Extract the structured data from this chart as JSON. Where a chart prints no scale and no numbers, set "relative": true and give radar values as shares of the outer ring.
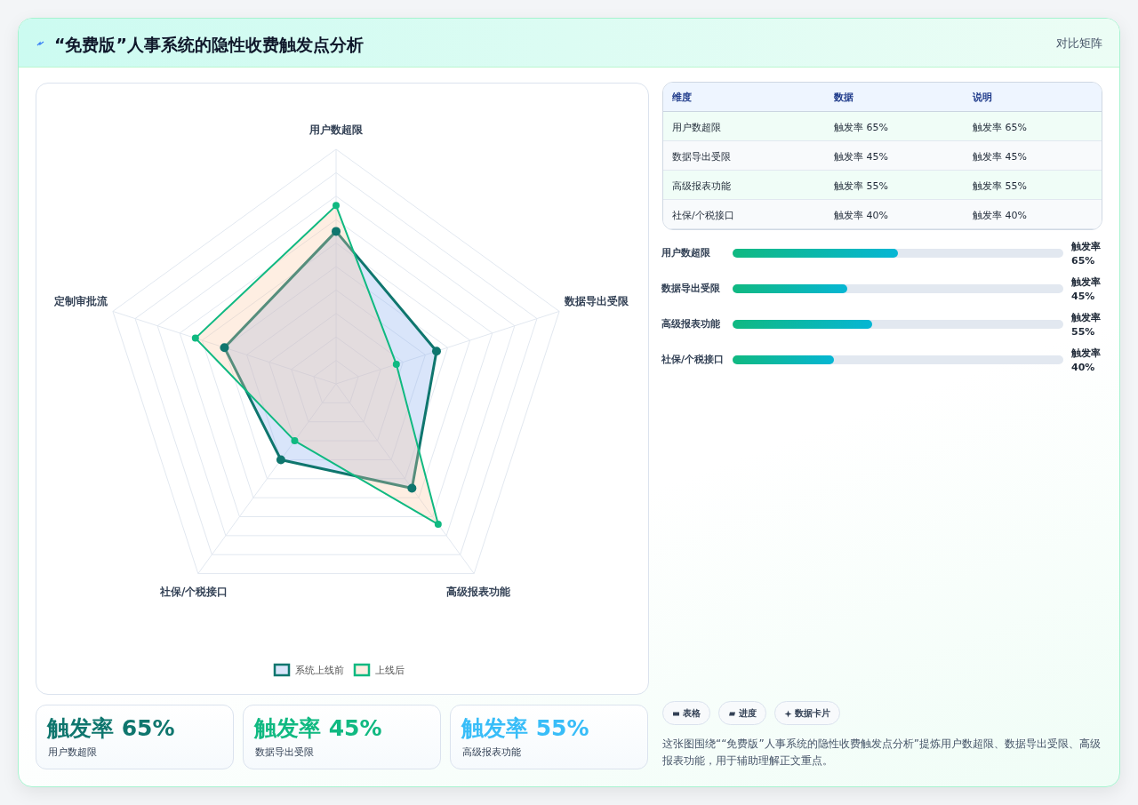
{
  "chart_data": [
    {
      "type": "other",
      "title": "“免费版”人事系统的隐性收费触发点分析",
      "subtitle": "对比矩阵"
    },
    {
      "type": "radar",
      "categories": [
        "用户数超限",
        "数据导出受限",
        "高级报表功能",
        "社保/个税接口",
        "定制审批流"
      ],
      "relative": true,
      "grid": true,
      "legend": "bottom",
      "marker": "circle",
      "series": [
        {
          "name": "系统上线前",
          "color": "#0f766e",
          "values": [
            0.65,
            0.45,
            0.55,
            0.4,
            0.5
          ]
        },
        {
          "name": "上线后",
          "color": "#10b981",
          "values": [
            0.76,
            0.27,
            0.74,
            0.3,
            0.63
          ]
        }
      ]
    },
    {
      "type": "other",
      "categories": [
        "维度",
        "数据",
        "说明"
      ],
      "y_categories": [
        "用户数超限",
        "数据导出受限",
        "高级报表功能",
        "社保/个税接口"
      ],
      "cell_labels": [
        [
          "触发率 65%",
          "触发率 65%"
        ],
        [
          "触发率 45%",
          "触发率 45%"
        ],
        [
          "触发率 55%",
          "触发率 55%"
        ],
        [
          "触发率 40%",
          "触发率 40%"
        ]
      ]
    },
    {
      "type": "bar",
      "orientation": "horizontal",
      "categories": [
        "用户数超限",
        "数据导出受限",
        "高级报表功能",
        "社保/个税接口"
      ],
      "values": [
        65,
        45,
        55,
        40
      ],
      "value_labels": [
        "触发率 65%",
        "触发率 45%",
        "触发率 55%",
        "触发率 40%"
      ],
      "xlim": [
        0,
        130
      ],
      "color": "#10b981"
    },
    {
      "type": "other",
      "categories": [
        "触发率 65%",
        "触发率 45%",
        "触发率 55%"
      ],
      "annotations": [
        "用户数超限",
        "数据导出受限",
        "高级报表功能"
      ]
    },
    {
      "type": "other",
      "categories": [
        "表格",
        "进度",
        "数据卡片"
      ],
      "annotations": [
        "这张图围绕““免费版”人事系统的隐性收费触发点分析”提炼用户数超限、数据导出受限、高级报表功能，用于辅助理解正文重点。"
      ]
    }
  ]
}
